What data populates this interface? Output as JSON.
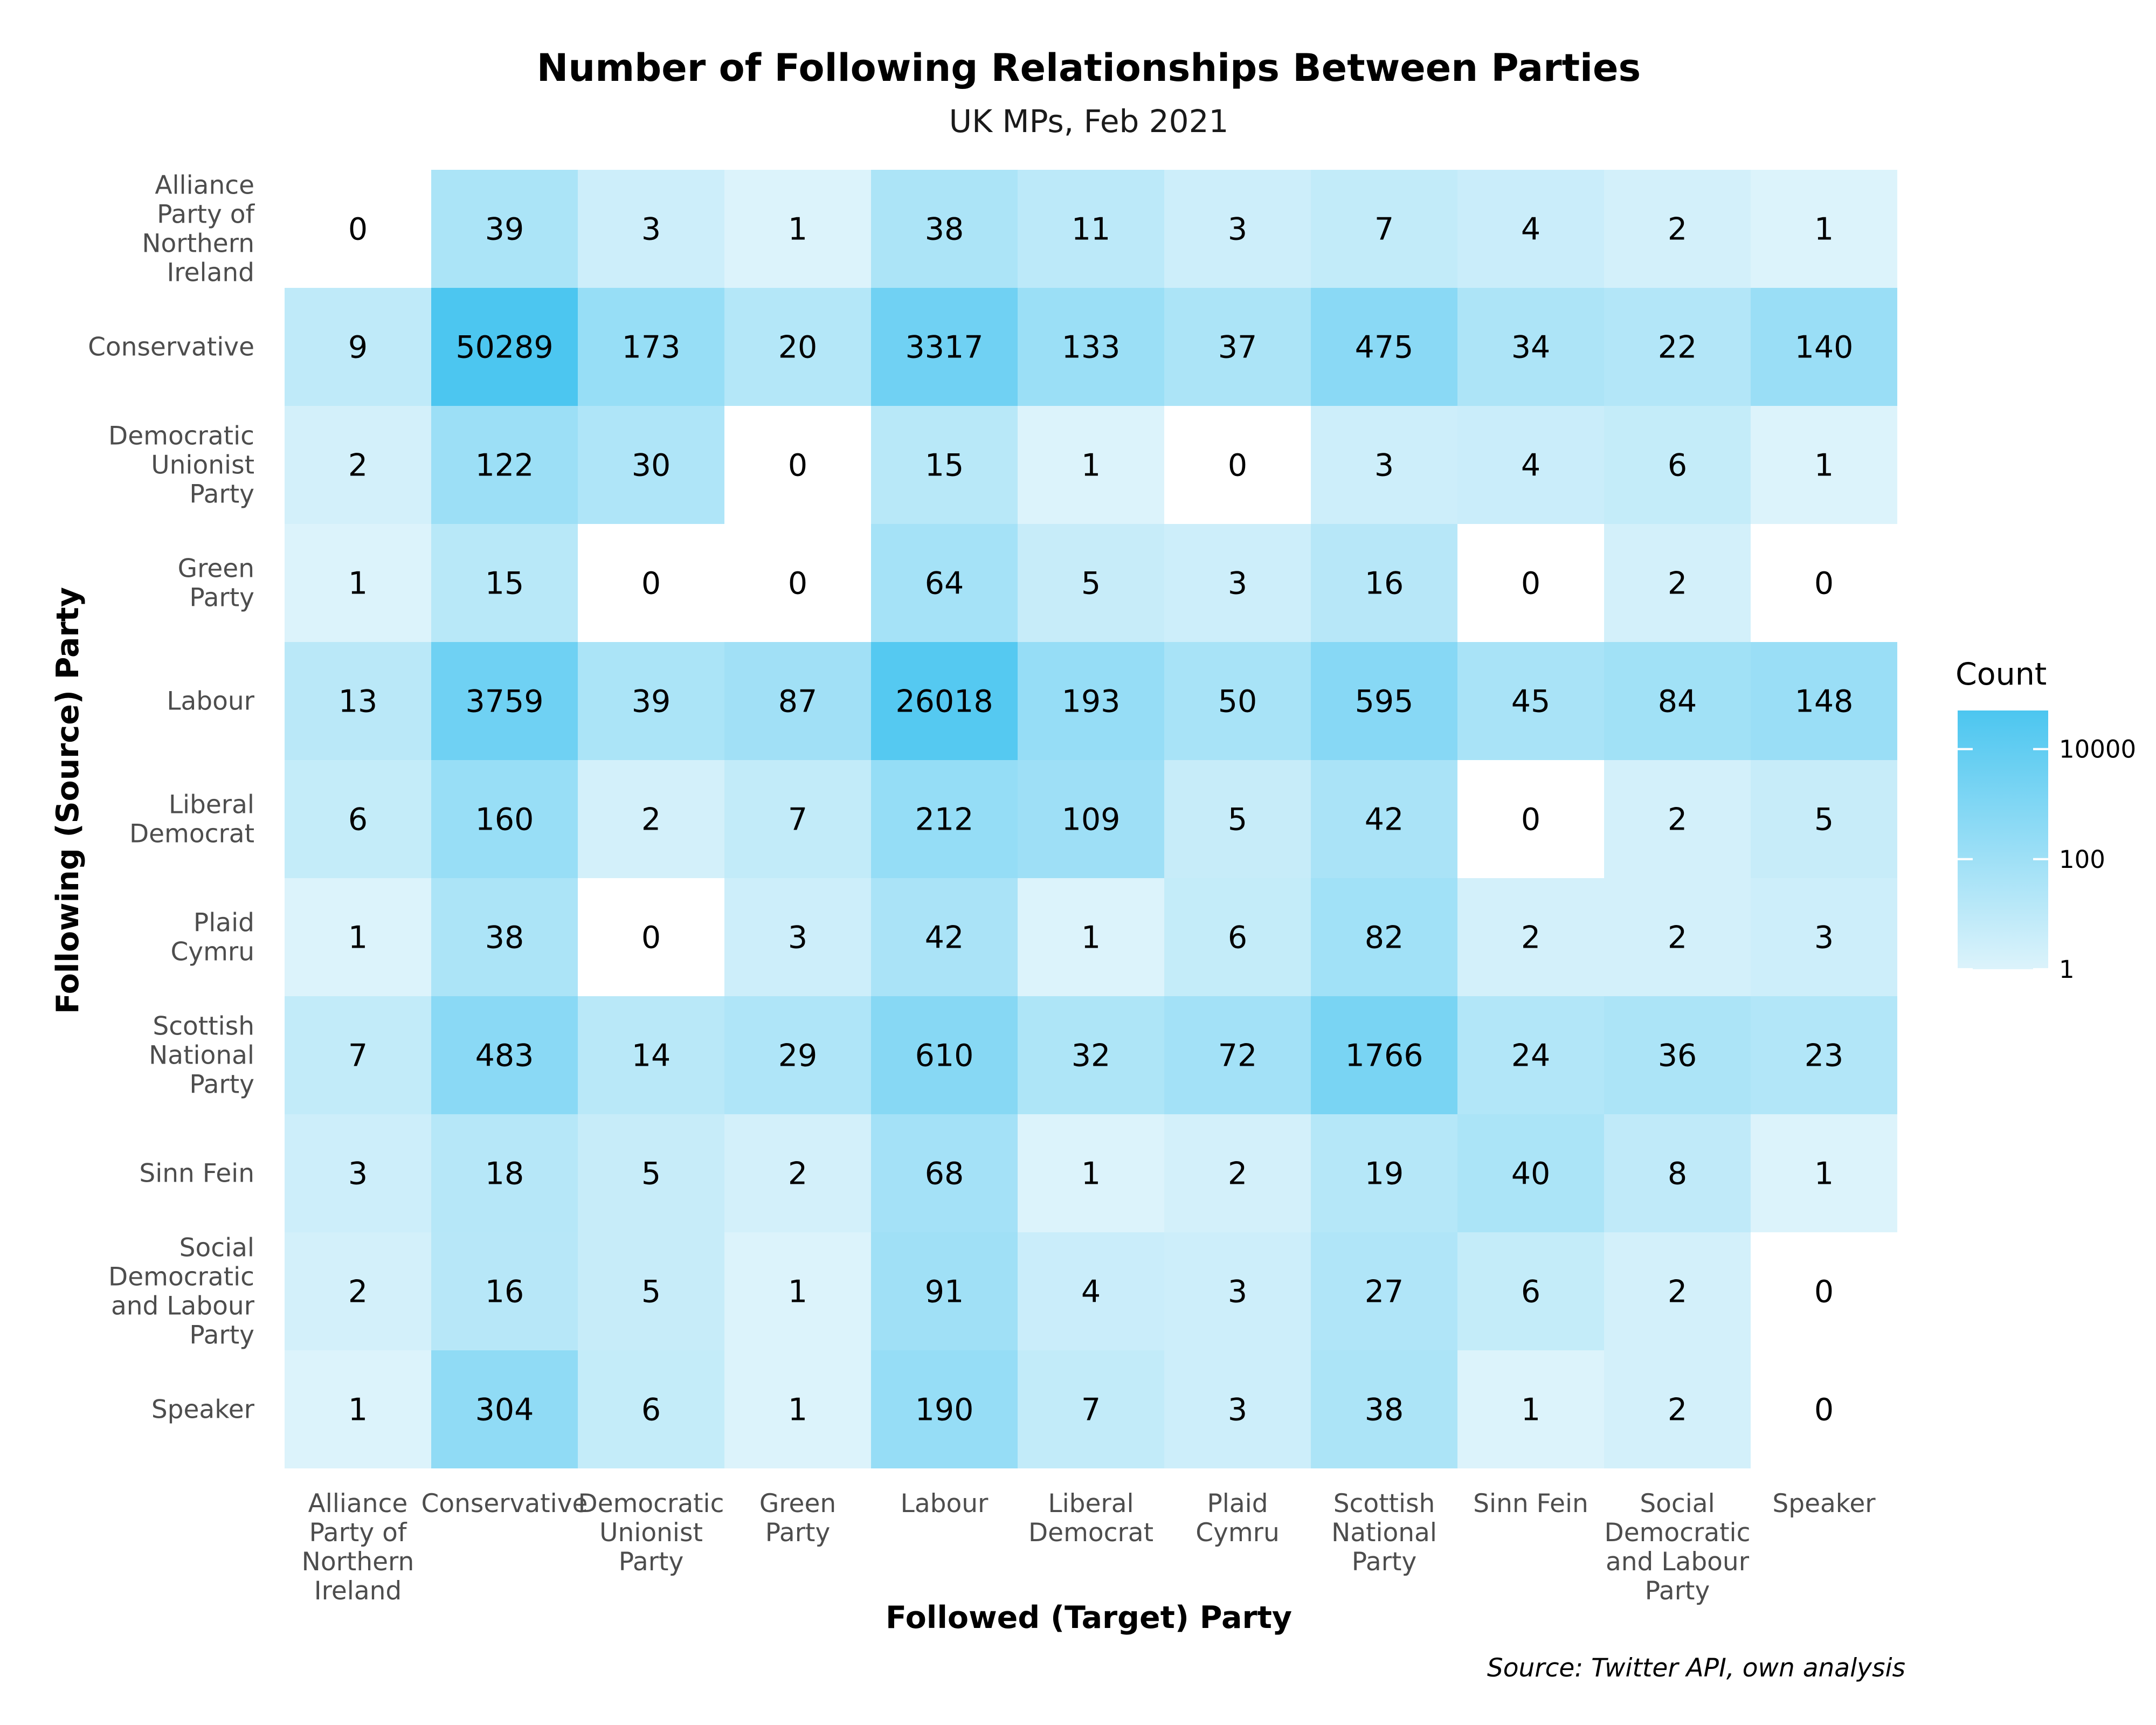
{
  "chart_data": {
    "type": "heatmap",
    "title": "Number of Following Relationships Between Parties",
    "subtitle": "UK MPs, Feb 2021",
    "xlabel": "Followed (Target) Party",
    "ylabel": "Following (Source) Party",
    "caption": "Source: Twitter API, own analysis",
    "x_categories": [
      [
        "Alliance",
        "Party of",
        "Northern",
        "Ireland"
      ],
      [
        "Conservative"
      ],
      [
        "Democratic",
        "Unionist",
        "Party"
      ],
      [
        "Green",
        "Party"
      ],
      [
        "Labour"
      ],
      [
        "Liberal",
        "Democrat"
      ],
      [
        "Plaid",
        "Cymru"
      ],
      [
        "Scottish",
        "National",
        "Party"
      ],
      [
        "Sinn Fein"
      ],
      [
        "Social",
        "Democratic",
        "and Labour",
        "Party"
      ],
      [
        "Speaker"
      ]
    ],
    "y_categories": [
      [
        "Alliance",
        "Party of",
        "Northern",
        "Ireland"
      ],
      [
        "Conservative"
      ],
      [
        "Democratic",
        "Unionist",
        "Party"
      ],
      [
        "Green",
        "Party"
      ],
      [
        "Labour"
      ],
      [
        "Liberal",
        "Democrat"
      ],
      [
        "Plaid",
        "Cymru"
      ],
      [
        "Scottish",
        "National",
        "Party"
      ],
      [
        "Sinn Fein"
      ],
      [
        "Social",
        "Democratic",
        "and Labour",
        "Party"
      ],
      [
        "Speaker"
      ]
    ],
    "values": [
      [
        0,
        39,
        3,
        1,
        38,
        11,
        3,
        7,
        4,
        2,
        1
      ],
      [
        9,
        50289,
        173,
        20,
        3317,
        133,
        37,
        475,
        34,
        22,
        140
      ],
      [
        2,
        122,
        30,
        0,
        15,
        1,
        0,
        3,
        4,
        6,
        1
      ],
      [
        1,
        15,
        0,
        0,
        64,
        5,
        3,
        16,
        0,
        2,
        0
      ],
      [
        13,
        3759,
        39,
        87,
        26018,
        193,
        50,
        595,
        45,
        84,
        148
      ],
      [
        6,
        160,
        2,
        7,
        212,
        109,
        5,
        42,
        0,
        2,
        5
      ],
      [
        1,
        38,
        0,
        3,
        42,
        1,
        6,
        82,
        2,
        2,
        3
      ],
      [
        7,
        483,
        14,
        29,
        610,
        32,
        72,
        1766,
        24,
        36,
        23
      ],
      [
        3,
        18,
        5,
        2,
        68,
        1,
        2,
        19,
        40,
        8,
        1
      ],
      [
        2,
        16,
        5,
        1,
        91,
        4,
        3,
        27,
        6,
        2,
        0
      ],
      [
        1,
        304,
        6,
        1,
        190,
        7,
        3,
        38,
        1,
        2,
        0
      ]
    ],
    "color_scale": "log10",
    "zero_color": "#ffffff",
    "color_low": "#dcf3fb",
    "color_high": "#4cc6f0",
    "legend": {
      "title": "Count",
      "ticks": [
        {
          "value": 1,
          "label": "1"
        },
        {
          "value": 100,
          "label": "100"
        },
        {
          "value": 10000,
          "label": "10000"
        }
      ],
      "min": 1,
      "max": 50289,
      "position": "right"
    },
    "grid": false
  }
}
